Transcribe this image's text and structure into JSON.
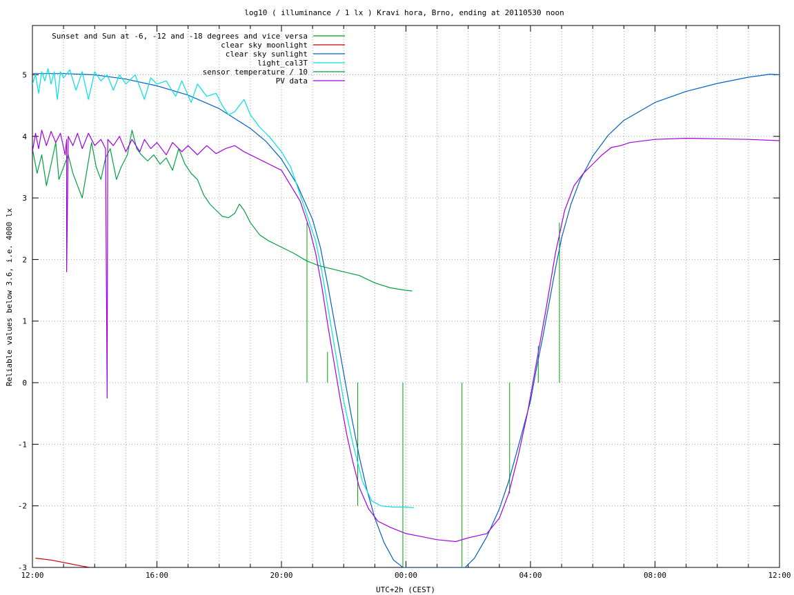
{
  "chart_data": {
    "type": "line",
    "title": "log10 ( illuminance / 1 lx ) Kravi hora, Brno, ending at 20110530 noon",
    "xlabel": "UTC+2h (CEST)",
    "ylabel": "Reliable values below 3.6, i.e. 4000 lx",
    "x_unit": "hours since 12:00 (local, wraps past midnight)",
    "xlim": [
      0,
      24
    ],
    "ylim": [
      -3,
      5.8
    ],
    "x_ticks": [
      {
        "v": 0,
        "label": "12:00"
      },
      {
        "v": 4,
        "label": "16:00"
      },
      {
        "v": 8,
        "label": "20:00"
      },
      {
        "v": 12,
        "label": "00:00"
      },
      {
        "v": 16,
        "label": "04:00"
      },
      {
        "v": 20,
        "label": "08:00"
      },
      {
        "v": 24,
        "label": "12:00"
      }
    ],
    "y_ticks": [
      -3,
      -2,
      -1,
      0,
      1,
      2,
      3,
      4,
      5
    ],
    "grid": true,
    "legend_position": "top-left",
    "series": [
      {
        "name": "Sunset and Sun at -6, -12 and -18 degrees and vice versa",
        "color": "#00a000",
        "kind": "impulses",
        "impulses": [
          {
            "x": 8.82,
            "y0": 0,
            "y1": 2.6
          },
          {
            "x": 9.48,
            "y0": 0,
            "y1": 0.5
          },
          {
            "x": 10.45,
            "y0": 0,
            "y1": -2.0
          },
          {
            "x": 11.9,
            "y0": 0,
            "y1": -3.0
          },
          {
            "x": 13.8,
            "y0": 0,
            "y1": -3.0
          },
          {
            "x": 15.33,
            "y0": 0,
            "y1": -1.8
          },
          {
            "x": 16.25,
            "y0": 0,
            "y1": 0.6
          },
          {
            "x": 16.93,
            "y0": 0,
            "y1": 2.6
          }
        ]
      },
      {
        "name": "clear sky moonlight",
        "color": "#c00000",
        "points": [
          [
            0.1,
            -2.85
          ],
          [
            0.6,
            -2.88
          ],
          [
            1.1,
            -2.93
          ],
          [
            1.6,
            -2.98
          ],
          [
            1.85,
            -3.0
          ]
        ]
      },
      {
        "name": "clear sky sunlight",
        "color": "#0060c0",
        "points": [
          [
            0,
            5.02
          ],
          [
            1,
            5.02
          ],
          [
            2,
            5.0
          ],
          [
            3,
            4.93
          ],
          [
            4,
            4.82
          ],
          [
            5,
            4.67
          ],
          [
            6,
            4.45
          ],
          [
            7,
            4.13
          ],
          [
            7.5,
            3.92
          ],
          [
            8,
            3.63
          ],
          [
            8.5,
            3.22
          ],
          [
            9,
            2.65
          ],
          [
            9.25,
            2.2
          ],
          [
            9.5,
            1.55
          ],
          [
            9.75,
            0.85
          ],
          [
            10,
            0.15
          ],
          [
            10.25,
            -0.55
          ],
          [
            10.5,
            -1.2
          ],
          [
            10.75,
            -1.75
          ],
          [
            11,
            -2.2
          ],
          [
            11.3,
            -2.6
          ],
          [
            11.6,
            -2.88
          ],
          [
            11.9,
            -3.0
          ],
          [
            13.9,
            -3.0
          ],
          [
            14.2,
            -2.85
          ],
          [
            14.6,
            -2.5
          ],
          [
            15,
            -2.05
          ],
          [
            15.3,
            -1.6
          ],
          [
            15.6,
            -1.05
          ],
          [
            16,
            -0.3
          ],
          [
            16.2,
            0.25
          ],
          [
            16.4,
            0.75
          ],
          [
            16.6,
            1.3
          ],
          [
            16.8,
            1.85
          ],
          [
            17,
            2.35
          ],
          [
            17.3,
            2.9
          ],
          [
            17.6,
            3.3
          ],
          [
            18,
            3.68
          ],
          [
            18.5,
            4.02
          ],
          [
            19,
            4.26
          ],
          [
            20,
            4.55
          ],
          [
            21,
            4.73
          ],
          [
            22,
            4.86
          ],
          [
            23,
            4.96
          ],
          [
            23.7,
            5.01
          ],
          [
            24,
            5.0
          ]
        ]
      },
      {
        "name": "light_cal3T",
        "color": "#00e0e0",
        "points": [
          [
            0,
            4.85
          ],
          [
            0.1,
            5.0
          ],
          [
            0.2,
            4.7
          ],
          [
            0.3,
            5.05
          ],
          [
            0.4,
            4.9
          ],
          [
            0.5,
            5.1
          ],
          [
            0.6,
            4.85
          ],
          [
            0.7,
            5.05
          ],
          [
            0.8,
            4.6
          ],
          [
            0.9,
            5.05
          ],
          [
            1.0,
            4.95
          ],
          [
            1.2,
            5.08
          ],
          [
            1.4,
            4.75
          ],
          [
            1.6,
            5.05
          ],
          [
            1.8,
            4.6
          ],
          [
            2.0,
            5.05
          ],
          [
            2.2,
            4.9
          ],
          [
            2.4,
            5.0
          ],
          [
            2.6,
            4.75
          ],
          [
            2.8,
            5.0
          ],
          [
            3.0,
            4.85
          ],
          [
            3.3,
            5.0
          ],
          [
            3.6,
            4.6
          ],
          [
            3.8,
            4.95
          ],
          [
            4.0,
            4.85
          ],
          [
            4.3,
            4.9
          ],
          [
            4.6,
            4.65
          ],
          [
            4.8,
            4.9
          ],
          [
            5.1,
            4.55
          ],
          [
            5.3,
            4.85
          ],
          [
            5.6,
            4.65
          ],
          [
            5.9,
            4.7
          ],
          [
            6.1,
            4.5
          ],
          [
            6.3,
            4.35
          ],
          [
            6.5,
            4.4
          ],
          [
            6.8,
            4.6
          ],
          [
            7.0,
            4.35
          ],
          [
            7.3,
            4.15
          ],
          [
            7.6,
            4.0
          ],
          [
            8.0,
            3.75
          ],
          [
            8.3,
            3.5
          ],
          [
            8.6,
            3.05
          ],
          [
            8.9,
            2.6
          ],
          [
            9.1,
            2.3
          ],
          [
            9.3,
            1.8
          ],
          [
            9.5,
            1.2
          ],
          [
            9.8,
            0.3
          ],
          [
            10,
            -0.3
          ],
          [
            10.3,
            -1.0
          ],
          [
            10.6,
            -1.6
          ],
          [
            10.9,
            -1.92
          ],
          [
            11.2,
            -2.0
          ],
          [
            11.6,
            -2.02
          ],
          [
            12.0,
            -2.02
          ],
          [
            12.25,
            -2.03
          ]
        ]
      },
      {
        "name": "sensor temperature / 10",
        "color": "#00a040",
        "points": [
          [
            0,
            3.8
          ],
          [
            0.15,
            3.4
          ],
          [
            0.3,
            3.7
          ],
          [
            0.45,
            3.2
          ],
          [
            0.6,
            3.55
          ],
          [
            0.75,
            3.9
          ],
          [
            0.85,
            3.3
          ],
          [
            1.0,
            3.5
          ],
          [
            1.15,
            3.7
          ],
          [
            1.3,
            3.4
          ],
          [
            1.45,
            3.2
          ],
          [
            1.6,
            3.0
          ],
          [
            1.75,
            3.45
          ],
          [
            1.9,
            3.9
          ],
          [
            2.05,
            3.5
          ],
          [
            2.2,
            3.3
          ],
          [
            2.35,
            3.65
          ],
          [
            2.5,
            3.8
          ],
          [
            2.7,
            3.3
          ],
          [
            2.85,
            3.5
          ],
          [
            3.05,
            3.7
          ],
          [
            3.2,
            4.1
          ],
          [
            3.35,
            3.8
          ],
          [
            3.5,
            3.7
          ],
          [
            3.7,
            3.6
          ],
          [
            3.9,
            3.7
          ],
          [
            4.1,
            3.55
          ],
          [
            4.3,
            3.65
          ],
          [
            4.5,
            3.45
          ],
          [
            4.7,
            3.8
          ],
          [
            4.9,
            3.55
          ],
          [
            5.1,
            3.4
          ],
          [
            5.3,
            3.3
          ],
          [
            5.5,
            3.05
          ],
          [
            5.7,
            2.9
          ],
          [
            5.9,
            2.8
          ],
          [
            6.1,
            2.7
          ],
          [
            6.3,
            2.68
          ],
          [
            6.5,
            2.75
          ],
          [
            6.65,
            2.9
          ],
          [
            6.8,
            2.8
          ],
          [
            7.0,
            2.6
          ],
          [
            7.3,
            2.4
          ],
          [
            7.6,
            2.3
          ],
          [
            8.0,
            2.2
          ],
          [
            8.4,
            2.1
          ],
          [
            8.8,
            1.98
          ],
          [
            9.2,
            1.9
          ],
          [
            9.6,
            1.85
          ],
          [
            10.0,
            1.8
          ],
          [
            10.5,
            1.74
          ],
          [
            11.0,
            1.62
          ],
          [
            11.5,
            1.54
          ],
          [
            12.0,
            1.5
          ],
          [
            12.2,
            1.49
          ]
        ]
      },
      {
        "name": "PV data",
        "color": "#a000e0",
        "points": [
          [
            0,
            3.75
          ],
          [
            0.1,
            4.05
          ],
          [
            0.2,
            3.8
          ],
          [
            0.3,
            4.1
          ],
          [
            0.45,
            3.85
          ],
          [
            0.6,
            4.08
          ],
          [
            0.75,
            3.9
          ],
          [
            0.9,
            4.05
          ],
          [
            1.05,
            3.7
          ],
          [
            1.1,
            3.95
          ],
          [
            1.1,
            1.8
          ],
          [
            1.12,
            2.6
          ],
          [
            1.15,
            4.0
          ],
          [
            1.3,
            3.85
          ],
          [
            1.45,
            4.05
          ],
          [
            1.6,
            3.8
          ],
          [
            1.8,
            4.05
          ],
          [
            2.0,
            3.85
          ],
          [
            2.2,
            3.95
          ],
          [
            2.35,
            3.8
          ],
          [
            2.4,
            -0.25
          ],
          [
            2.42,
            3.95
          ],
          [
            2.6,
            3.85
          ],
          [
            2.8,
            4.0
          ],
          [
            3.0,
            3.75
          ],
          [
            3.2,
            3.95
          ],
          [
            3.45,
            3.75
          ],
          [
            3.6,
            3.95
          ],
          [
            3.8,
            3.8
          ],
          [
            4.0,
            3.9
          ],
          [
            4.3,
            3.7
          ],
          [
            4.5,
            3.9
          ],
          [
            4.8,
            3.75
          ],
          [
            5.0,
            3.85
          ],
          [
            5.3,
            3.7
          ],
          [
            5.6,
            3.85
          ],
          [
            5.9,
            3.72
          ],
          [
            6.2,
            3.8
          ],
          [
            6.5,
            3.85
          ],
          [
            6.8,
            3.75
          ],
          [
            7.2,
            3.65
          ],
          [
            7.6,
            3.55
          ],
          [
            8.0,
            3.45
          ],
          [
            8.3,
            3.2
          ],
          [
            8.6,
            2.95
          ],
          [
            8.9,
            2.5
          ],
          [
            9.1,
            2.1
          ],
          [
            9.3,
            1.55
          ],
          [
            9.5,
            0.9
          ],
          [
            9.7,
            0.3
          ],
          [
            9.9,
            -0.3
          ],
          [
            10.1,
            -0.85
          ],
          [
            10.3,
            -1.3
          ],
          [
            10.5,
            -1.7
          ],
          [
            10.8,
            -2.05
          ],
          [
            11.1,
            -2.25
          ],
          [
            11.5,
            -2.35
          ],
          [
            12.0,
            -2.45
          ],
          [
            12.5,
            -2.5
          ],
          [
            13.0,
            -2.55
          ],
          [
            13.6,
            -2.58
          ],
          [
            14.0,
            -2.52
          ],
          [
            14.6,
            -2.45
          ],
          [
            15.0,
            -2.2
          ],
          [
            15.3,
            -1.8
          ],
          [
            15.6,
            -1.2
          ],
          [
            15.9,
            -0.5
          ],
          [
            16.2,
            0.35
          ],
          [
            16.5,
            1.2
          ],
          [
            16.8,
            2.1
          ],
          [
            17.1,
            2.8
          ],
          [
            17.4,
            3.2
          ],
          [
            17.7,
            3.4
          ],
          [
            18.0,
            3.55
          ],
          [
            18.3,
            3.7
          ],
          [
            18.6,
            3.82
          ],
          [
            18.9,
            3.85
          ],
          [
            19.2,
            3.9
          ],
          [
            20.0,
            3.95
          ],
          [
            21.0,
            3.97
          ],
          [
            22.0,
            3.96
          ],
          [
            23.0,
            3.95
          ],
          [
            24.0,
            3.93
          ]
        ]
      }
    ]
  }
}
